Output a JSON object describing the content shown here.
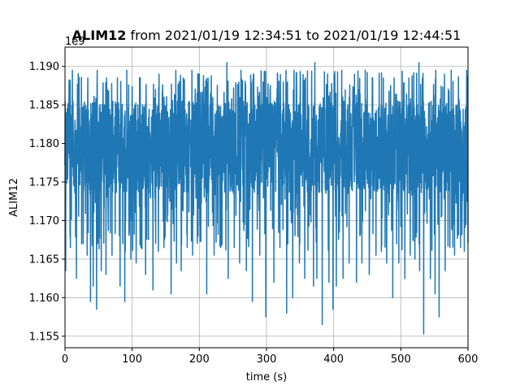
{
  "chart_data": {
    "type": "line",
    "title_series": "ALIM12",
    "title_range": " from 2021/01/19 12:34:51 to 2021/01/19 12:44:51",
    "xlabel": "time (s)",
    "ylabel": "ALIM12",
    "y_offset_label": "1e9",
    "xlim": [
      0,
      600
    ],
    "ylim": [
      1.1535,
      1.1925
    ],
    "x_ticks": [
      0,
      100,
      200,
      300,
      400,
      500,
      600
    ],
    "y_ticks": [
      1.155,
      1.16,
      1.165,
      1.17,
      1.175,
      1.18,
      1.185,
      1.19
    ],
    "y_tick_labels": [
      "1.155",
      "1.160",
      "1.165",
      "1.170",
      "1.175",
      "1.180",
      "1.185",
      "1.190"
    ],
    "grid": true,
    "line_color": "#1f77b4",
    "series": [
      {
        "band_low": 1.1735,
        "band_high": 1.1855,
        "typical_min": 1.166,
        "typical_max": 1.1895,
        "spikes_low": [
          [
            1,
            1.1635
          ],
          [
            8,
            1.1665
          ],
          [
            17,
            1.1625
          ],
          [
            27,
            1.167
          ],
          [
            33,
            1.1655
          ],
          [
            38,
            1.1595
          ],
          [
            42,
            1.1615
          ],
          [
            47,
            1.1585
          ],
          [
            54,
            1.1635
          ],
          [
            61,
            1.163
          ],
          [
            70,
            1.1655
          ],
          [
            82,
            1.1615
          ],
          [
            89,
            1.1595
          ],
          [
            98,
            1.165
          ],
          [
            106,
            1.1645
          ],
          [
            113,
            1.1665
          ],
          [
            120,
            1.163
          ],
          [
            131,
            1.161
          ],
          [
            139,
            1.166
          ],
          [
            148,
            1.1675
          ],
          [
            158,
            1.1605
          ],
          [
            166,
            1.1645
          ],
          [
            173,
            1.1635
          ],
          [
            182,
            1.1665
          ],
          [
            190,
            1.1655
          ],
          [
            198,
            1.168
          ],
          [
            211,
            1.1605
          ],
          [
            222,
            1.1655
          ],
          [
            232,
            1.1665
          ],
          [
            243,
            1.1625
          ],
          [
            252,
            1.1665
          ],
          [
            260,
            1.1645
          ],
          [
            270,
            1.1635
          ],
          [
            279,
            1.1595
          ],
          [
            290,
            1.1655
          ],
          [
            299,
            1.1575
          ],
          [
            311,
            1.162
          ],
          [
            320,
            1.1665
          ],
          [
            330,
            1.158
          ],
          [
            339,
            1.16
          ],
          [
            349,
            1.1645
          ],
          [
            357,
            1.1625
          ],
          [
            370,
            1.1615
          ],
          [
            375,
            1.1625
          ],
          [
            383,
            1.1565
          ],
          [
            393,
            1.162
          ],
          [
            399,
            1.1585
          ],
          [
            404,
            1.1615
          ],
          [
            414,
            1.1625
          ],
          [
            423,
            1.1645
          ],
          [
            434,
            1.162
          ],
          [
            442,
            1.1645
          ],
          [
            453,
            1.163
          ],
          [
            463,
            1.1655
          ],
          [
            471,
            1.166
          ],
          [
            479,
            1.1645
          ],
          [
            488,
            1.16
          ],
          [
            497,
            1.1645
          ],
          [
            506,
            1.1625
          ],
          [
            514,
            1.1655
          ],
          [
            521,
            1.165
          ],
          [
            528,
            1.1635
          ],
          [
            534,
            1.1553
          ],
          [
            544,
            1.1625
          ],
          [
            551,
            1.1605
          ],
          [
            557,
            1.1575
          ],
          [
            566,
            1.1635
          ],
          [
            573,
            1.1665
          ],
          [
            580,
            1.1655
          ],
          [
            589,
            1.1665
          ],
          [
            597,
            1.1695
          ]
        ],
        "spikes_high": [
          [
            1,
            1.1905
          ],
          [
            11,
            1.1895
          ],
          [
            20,
            1.188
          ],
          [
            34,
            1.1885
          ],
          [
            48,
            1.1895
          ],
          [
            62,
            1.1885
          ],
          [
            78,
            1.1885
          ],
          [
            92,
            1.1895
          ],
          [
            112,
            1.1885
          ],
          [
            140,
            1.189
          ],
          [
            148,
            1.1875
          ],
          [
            165,
            1.1895
          ],
          [
            176,
            1.1885
          ],
          [
            189,
            1.1895
          ],
          [
            200,
            1.189
          ],
          [
            213,
            1.1885
          ],
          [
            241,
            1.1905
          ],
          [
            262,
            1.1895
          ],
          [
            281,
            1.189
          ],
          [
            295,
            1.188
          ],
          [
            311,
            1.189
          ],
          [
            329,
            1.1895
          ],
          [
            341,
            1.1895
          ],
          [
            358,
            1.1885
          ],
          [
            372,
            1.1905
          ],
          [
            391,
            1.189
          ],
          [
            412,
            1.1895
          ],
          [
            431,
            1.189
          ],
          [
            447,
            1.1895
          ],
          [
            458,
            1.1885
          ],
          [
            474,
            1.1885
          ],
          [
            490,
            1.1885
          ],
          [
            512,
            1.1885
          ],
          [
            527,
            1.1905
          ],
          [
            552,
            1.1895
          ],
          [
            565,
            1.189
          ],
          [
            575,
            1.1895
          ],
          [
            589,
            1.1905
          ],
          [
            598,
            1.1895
          ]
        ]
      }
    ]
  }
}
